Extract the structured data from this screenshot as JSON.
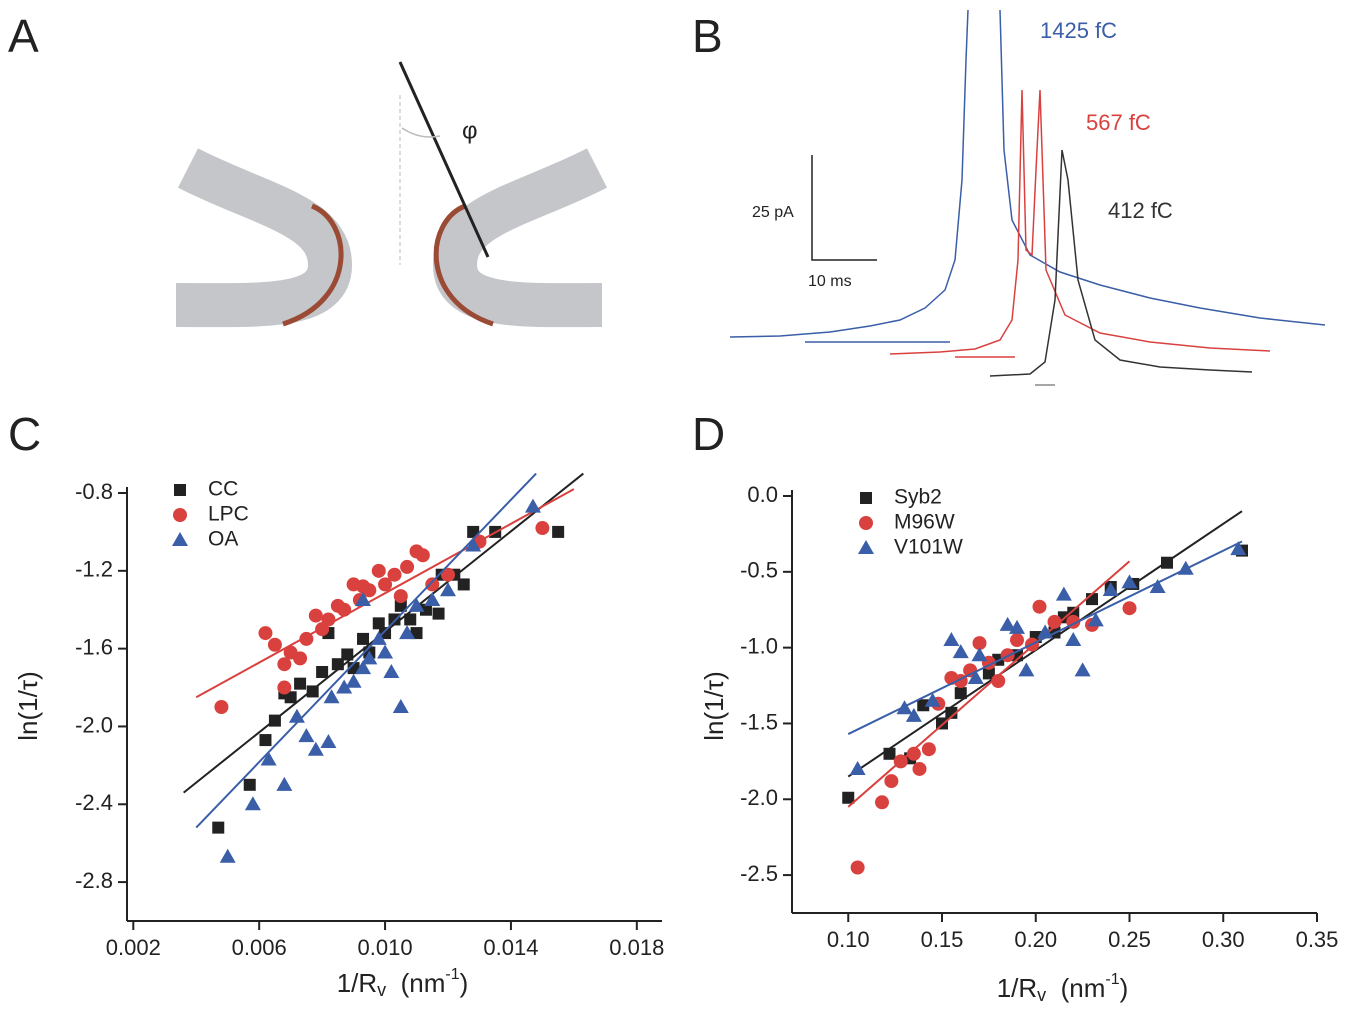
{
  "panels": [
    "A",
    "B",
    "C",
    "D"
  ],
  "diagram_a": {
    "angle_label": "φ"
  },
  "traces_b": {
    "labels": [
      "1425 fC",
      "567 fC",
      "412 fC"
    ],
    "scale_y": "25 pA",
    "scale_x": "10 ms"
  },
  "chart_data": [
    {
      "type": "scatter",
      "xlabel": [
        "1/R",
        "v",
        "  (nm",
        "-1",
        ")"
      ],
      "ylabel": "ln(1/τ)",
      "xlim": [
        0.0018,
        0.0188
      ],
      "ylim": [
        -3.0,
        -0.8
      ],
      "xticks": [
        0.002,
        0.006,
        {
          "value": 0.01,
          "label": "0.010"
        },
        0.014,
        0.018
      ],
      "yticks": [
        -0.8,
        -1.2,
        -1.6,
        {
          "value": -2,
          "label": "-2.0"
        },
        -2.4,
        -2.8
      ],
      "series": [
        {
          "name": "CC",
          "color": "#222222",
          "marker": "square",
          "x": [
            0.0047,
            0.0057,
            0.0062,
            0.0065,
            0.0068,
            0.007,
            0.0073,
            0.0077,
            0.008,
            0.0082,
            0.0085,
            0.0088,
            0.009,
            0.0093,
            0.0095,
            0.0098,
            0.01,
            0.0103,
            0.0105,
            0.0108,
            0.011,
            0.0113,
            0.0117,
            0.0118,
            0.0122,
            0.0125,
            0.0128,
            0.0135,
            0.0155
          ],
          "values": [
            -2.52,
            -2.3,
            -2.07,
            -1.97,
            -1.83,
            -1.85,
            -1.78,
            -1.82,
            -1.72,
            -1.52,
            -1.68,
            -1.63,
            -1.7,
            -1.55,
            -1.62,
            -1.47,
            -1.52,
            -1.45,
            -1.38,
            -1.45,
            -1.52,
            -1.4,
            -1.42,
            -1.22,
            -1.22,
            -1.27,
            -1.0,
            -1.0,
            -1.0
          ],
          "fit": {
            "x": [
              0.0036,
              0.0163
            ],
            "values": [
              -2.34,
              -0.7
            ]
          }
        },
        {
          "name": "LPC",
          "color": "#d9413f",
          "marker": "circle",
          "x": [
            0.0048,
            0.0062,
            0.0065,
            0.0068,
            0.007,
            0.0073,
            0.0075,
            0.0078,
            0.008,
            0.0082,
            0.0085,
            0.0087,
            0.009,
            0.0092,
            0.0093,
            0.0095,
            0.0098,
            0.01,
            0.0103,
            0.0105,
            0.0107,
            0.011,
            0.0112,
            0.0115,
            0.012,
            0.013,
            0.015,
            0.0068
          ],
          "values": [
            -1.9,
            -1.52,
            -1.58,
            -1.68,
            -1.62,
            -1.65,
            -1.55,
            -1.43,
            -1.5,
            -1.45,
            -1.38,
            -1.4,
            -1.27,
            -1.35,
            -1.28,
            -1.3,
            -1.2,
            -1.27,
            -1.22,
            -1.33,
            -1.18,
            -1.1,
            -1.12,
            -1.27,
            -1.22,
            -1.05,
            -0.98,
            -1.8
          ],
          "fit": {
            "x": [
              0.004,
              0.016
            ],
            "values": [
              -1.85,
              -0.78
            ]
          }
        },
        {
          "name": "OA",
          "color": "#3a5ea8",
          "marker": "triangle",
          "x": [
            0.005,
            0.0058,
            0.0063,
            0.0068,
            0.0072,
            0.0075,
            0.0078,
            0.0082,
            0.0083,
            0.0087,
            0.009,
            0.0093,
            0.0095,
            0.0098,
            0.01,
            0.0102,
            0.0105,
            0.0107,
            0.011,
            0.0115,
            0.012,
            0.0128,
            0.0147,
            0.0093
          ],
          "values": [
            -2.67,
            -2.4,
            -2.17,
            -2.3,
            -1.95,
            -2.05,
            -2.12,
            -2.08,
            -1.85,
            -1.8,
            -1.77,
            -1.7,
            -1.65,
            -1.55,
            -1.62,
            -1.72,
            -1.9,
            -1.52,
            -1.38,
            -1.35,
            -1.3,
            -1.07,
            -0.87,
            -1.35
          ],
          "fit": {
            "x": [
              0.004,
              0.0148
            ],
            "values": [
              -2.52,
              -0.7
            ]
          }
        }
      ]
    },
    {
      "type": "scatter",
      "xlabel": [
        "1/R",
        "v",
        "  (nm",
        "-1",
        ")"
      ],
      "ylabel": "ln(1/τ)",
      "xlim": [
        0.07,
        0.35
      ],
      "ylim": [
        -2.75,
        0.0
      ],
      "xticks": [
        {
          "value": 0.1,
          "label": "0.10"
        },
        0.15,
        {
          "value": 0.2,
          "label": "0.20"
        },
        0.25,
        {
          "value": 0.3,
          "label": "0.30"
        },
        0.35
      ],
      "yticks": [
        {
          "value": 0,
          "label": "0.0"
        },
        -0.5,
        {
          "value": -1,
          "label": "-1.0"
        },
        -1.5,
        {
          "value": -2,
          "label": "-2.0"
        },
        -2.5
      ],
      "series": [
        {
          "name": "Syb2",
          "color": "#222222",
          "marker": "square",
          "x": [
            0.1,
            0.122,
            0.133,
            0.14,
            0.15,
            0.155,
            0.16,
            0.175,
            0.18,
            0.19,
            0.2,
            0.21,
            0.215,
            0.22,
            0.23,
            0.24,
            0.252,
            0.27,
            0.31
          ],
          "values": [
            -1.99,
            -1.7,
            -1.73,
            -1.38,
            -1.5,
            -1.43,
            -1.3,
            -1.17,
            -1.08,
            -1.05,
            -0.93,
            -0.9,
            -0.8,
            -0.77,
            -0.68,
            -0.6,
            -0.58,
            -0.44,
            -0.36
          ],
          "fit": {
            "x": [
              0.1,
              0.31
            ],
            "values": [
              -1.85,
              -0.1
            ]
          }
        },
        {
          "name": "M96W",
          "color": "#d9413f",
          "marker": "circle",
          "x": [
            0.105,
            0.118,
            0.123,
            0.128,
            0.135,
            0.138,
            0.143,
            0.148,
            0.155,
            0.16,
            0.165,
            0.17,
            0.175,
            0.18,
            0.185,
            0.19,
            0.198,
            0.202,
            0.21,
            0.22,
            0.23,
            0.25
          ],
          "values": [
            -2.45,
            -2.02,
            -1.88,
            -1.75,
            -1.7,
            -1.8,
            -1.67,
            -1.37,
            -1.2,
            -1.22,
            -1.15,
            -0.97,
            -1.1,
            -1.22,
            -1.05,
            -0.95,
            -0.98,
            -0.73,
            -0.83,
            -0.83,
            -0.85,
            -0.74
          ],
          "fit": {
            "x": [
              0.1,
              0.25
            ],
            "values": [
              -2.05,
              -0.43
            ]
          }
        },
        {
          "name": "V101W",
          "color": "#3a5ea8",
          "marker": "triangle",
          "x": [
            0.105,
            0.13,
            0.135,
            0.145,
            0.155,
            0.16,
            0.168,
            0.17,
            0.185,
            0.19,
            0.195,
            0.205,
            0.215,
            0.22,
            0.225,
            0.232,
            0.24,
            0.25,
            0.265,
            0.28,
            0.308
          ],
          "values": [
            -1.8,
            -1.4,
            -1.45,
            -1.35,
            -0.95,
            -1.03,
            -1.2,
            -1.05,
            -0.85,
            -0.87,
            -1.15,
            -0.9,
            -0.65,
            -0.95,
            -1.15,
            -0.82,
            -0.62,
            -0.57,
            -0.6,
            -0.48,
            -0.35
          ],
          "fit": {
            "x": [
              0.1,
              0.31
            ],
            "values": [
              -1.57,
              -0.3
            ]
          }
        }
      ]
    }
  ]
}
